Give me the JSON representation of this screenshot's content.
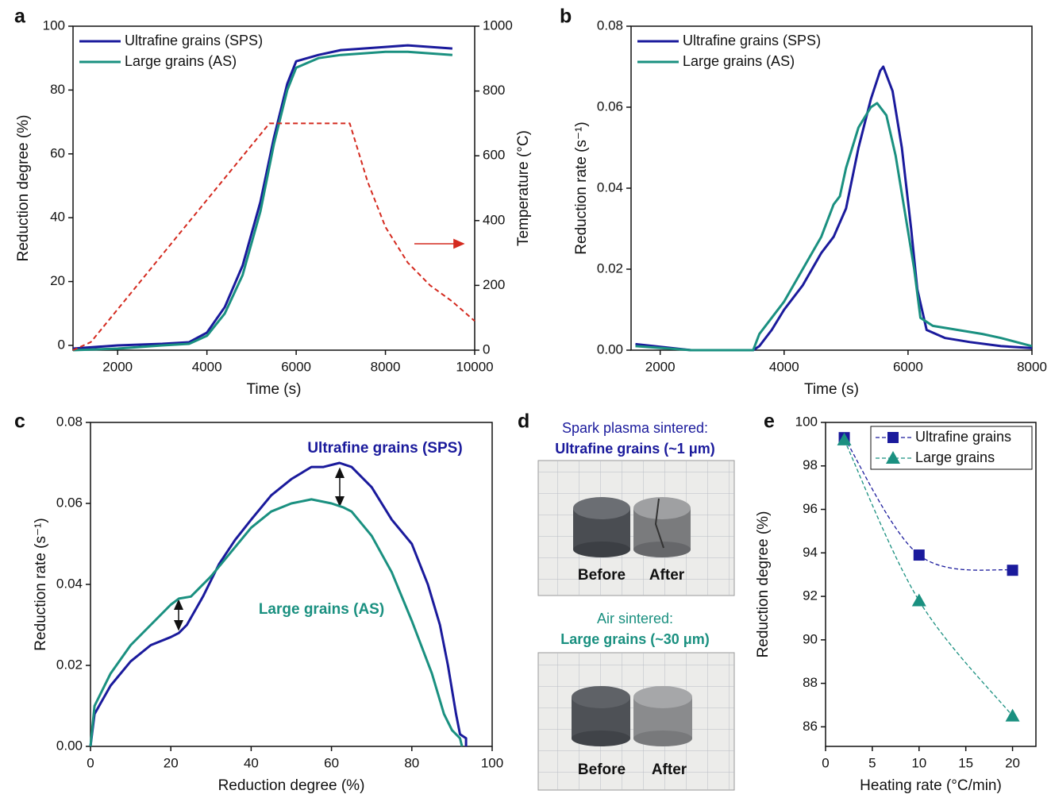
{
  "chart_data": [
    {
      "type": "line",
      "label": "a",
      "xlabel": "Time (s)",
      "ylabel": "Reduction degree (%)",
      "y2label": "Temperature (°C)",
      "xlim": [
        1000,
        10000
      ],
      "xticks": [
        2000,
        4000,
        6000,
        8000,
        10000
      ],
      "ylim": [
        -1.5,
        100
      ],
      "yticks": [
        0,
        20,
        40,
        60,
        80,
        100
      ],
      "y2lim": [
        0,
        1000
      ],
      "y2ticks": [
        0,
        200,
        400,
        600,
        800,
        1000
      ],
      "series": [
        {
          "name": "Ultrafine grains (SPS)",
          "color": "#1a1a9c",
          "x": [
            1000,
            2000,
            3000,
            3600,
            4000,
            4400,
            4800,
            5200,
            5500,
            5800,
            6000,
            6500,
            7000,
            8000,
            8500,
            9000,
            9500
          ],
          "values": [
            -1,
            0,
            0.5,
            1,
            4,
            12,
            25,
            45,
            65,
            82,
            89,
            91,
            92.5,
            93.5,
            94,
            93.5,
            93
          ]
        },
        {
          "name": "Large grains (AS)",
          "color": "#1a9080",
          "x": [
            1000,
            2000,
            3000,
            3600,
            4000,
            4400,
            4800,
            5200,
            5500,
            5800,
            6000,
            6500,
            7000,
            8000,
            8500,
            9000,
            9500
          ],
          "values": [
            -1.5,
            -1,
            0,
            0.5,
            3,
            10,
            22,
            42,
            63,
            80,
            87,
            90,
            91,
            92,
            92,
            91.5,
            91
          ]
        },
        {
          "color": "#d42a1f",
          "axis": "y2",
          "dashed": true,
          "x": [
            1000,
            1400,
            5400,
            7200,
            7600,
            8000,
            8500,
            9000,
            9500,
            10000
          ],
          "values": [
            0,
            25,
            700,
            700,
            520,
            380,
            270,
            200,
            150,
            90
          ]
        }
      ]
    },
    {
      "type": "line",
      "label": "b",
      "xlabel": "Time (s)",
      "ylabel": "Reduction rate (s⁻¹)",
      "xlim": [
        1530,
        8000
      ],
      "xticks": [
        2000,
        4000,
        6000,
        8000
      ],
      "ylim": [
        0,
        0.08
      ],
      "yticks": [
        {
          "value": 0,
          "label": "0.00"
        },
        0.02,
        0.04,
        0.06,
        0.08
      ],
      "series": [
        {
          "name": "Ultrafine grains (SPS)",
          "color": "#1a1a9c",
          "x": [
            1600,
            2500,
            3500,
            3600,
            3800,
            4000,
            4300,
            4600,
            4800,
            5000,
            5200,
            5400,
            5550,
            5600,
            5750,
            5900,
            6050,
            6150,
            6300,
            6600,
            7000,
            7500,
            8000
          ],
          "values": [
            0.0015,
            0,
            0,
            0.001,
            0.005,
            0.01,
            0.016,
            0.024,
            0.028,
            0.035,
            0.05,
            0.062,
            0.069,
            0.07,
            0.064,
            0.05,
            0.03,
            0.015,
            0.005,
            0.003,
            0.002,
            0.001,
            0.0005
          ]
        },
        {
          "name": "Large grains (AS)",
          "color": "#1a9080",
          "x": [
            1600,
            2500,
            3500,
            3600,
            3800,
            4000,
            4300,
            4600,
            4800,
            4900,
            5000,
            5200,
            5400,
            5500,
            5650,
            5800,
            5950,
            6100,
            6200,
            6400,
            6800,
            7200,
            7500,
            8000
          ],
          "values": [
            0.001,
            0,
            0,
            0.004,
            0.008,
            0.012,
            0.02,
            0.028,
            0.036,
            0.038,
            0.045,
            0.055,
            0.06,
            0.061,
            0.058,
            0.048,
            0.034,
            0.02,
            0.008,
            0.006,
            0.005,
            0.004,
            0.003,
            0.001
          ]
        }
      ]
    },
    {
      "type": "line",
      "label": "c",
      "xlabel": "Reduction degree (%)",
      "ylabel": "Reduction rate (s⁻¹)",
      "xlim": [
        0,
        100
      ],
      "xticks": [
        0,
        20,
        40,
        60,
        80,
        100
      ],
      "ylim": [
        0,
        0.08
      ],
      "yticks": [
        {
          "value": 0,
          "label": "0.00"
        },
        0.02,
        0.04,
        0.06,
        0.08
      ],
      "annotations": [
        "Ultrafine grains (SPS)",
        "Large grains (AS)"
      ],
      "series": [
        {
          "color": "#1a1a9c",
          "x": [
            0,
            1,
            5,
            10,
            15,
            20,
            22,
            24,
            28,
            32,
            36,
            40,
            45,
            50,
            55,
            58,
            62,
            65,
            70,
            75,
            80,
            84,
            87,
            89,
            91,
            92,
            93.5,
            93.5
          ],
          "values": [
            0,
            0.008,
            0.015,
            0.021,
            0.025,
            0.027,
            0.028,
            0.03,
            0.037,
            0.045,
            0.051,
            0.056,
            0.062,
            0.066,
            0.069,
            0.069,
            0.07,
            0.069,
            0.064,
            0.056,
            0.05,
            0.04,
            0.03,
            0.02,
            0.008,
            0.003,
            0.002,
            0
          ]
        },
        {
          "color": "#1a9080",
          "x": [
            0,
            1,
            5,
            10,
            15,
            20,
            22,
            25,
            30,
            35,
            40,
            45,
            50,
            55,
            60,
            63,
            65,
            70,
            75,
            80,
            85,
            88,
            90,
            92,
            92.5
          ],
          "values": [
            0,
            0.01,
            0.018,
            0.025,
            0.03,
            0.035,
            0.0365,
            0.037,
            0.042,
            0.048,
            0.054,
            0.058,
            0.06,
            0.061,
            0.06,
            0.059,
            0.058,
            0.052,
            0.043,
            0.031,
            0.018,
            0.008,
            0.004,
            0.002,
            0
          ]
        }
      ]
    },
    {
      "type": "scatter",
      "label": "e",
      "xlabel": "Heating rate (°C/min)",
      "ylabel": "Reduction degree (%)",
      "xlim": [
        0,
        22.5
      ],
      "xticks": [
        0,
        5,
        10,
        15,
        20
      ],
      "ylim": [
        85.1,
        100
      ],
      "yticks": [
        86,
        88,
        90,
        92,
        94,
        96,
        98,
        100
      ],
      "series": [
        {
          "name": "Ultrafine grains",
          "color": "#1a1a9c",
          "marker": "square",
          "x": [
            2,
            10,
            20
          ],
          "values": [
            99.3,
            93.9,
            93.2
          ]
        },
        {
          "name": "Large grains",
          "color": "#1a9080",
          "marker": "triangle",
          "x": [
            2,
            10,
            20
          ],
          "values": [
            99.2,
            91.8,
            86.5
          ]
        }
      ]
    }
  ],
  "photo_panel": {
    "label": "d",
    "top": {
      "caption": "Spark plasma sintered:",
      "title": "Ultrafine grains (~1 μm)",
      "before": "Before",
      "after": "After"
    },
    "bottom": {
      "caption": "Air sintered:",
      "title": "Large grains (~30 μm)",
      "before": "Before",
      "after": "After"
    }
  }
}
